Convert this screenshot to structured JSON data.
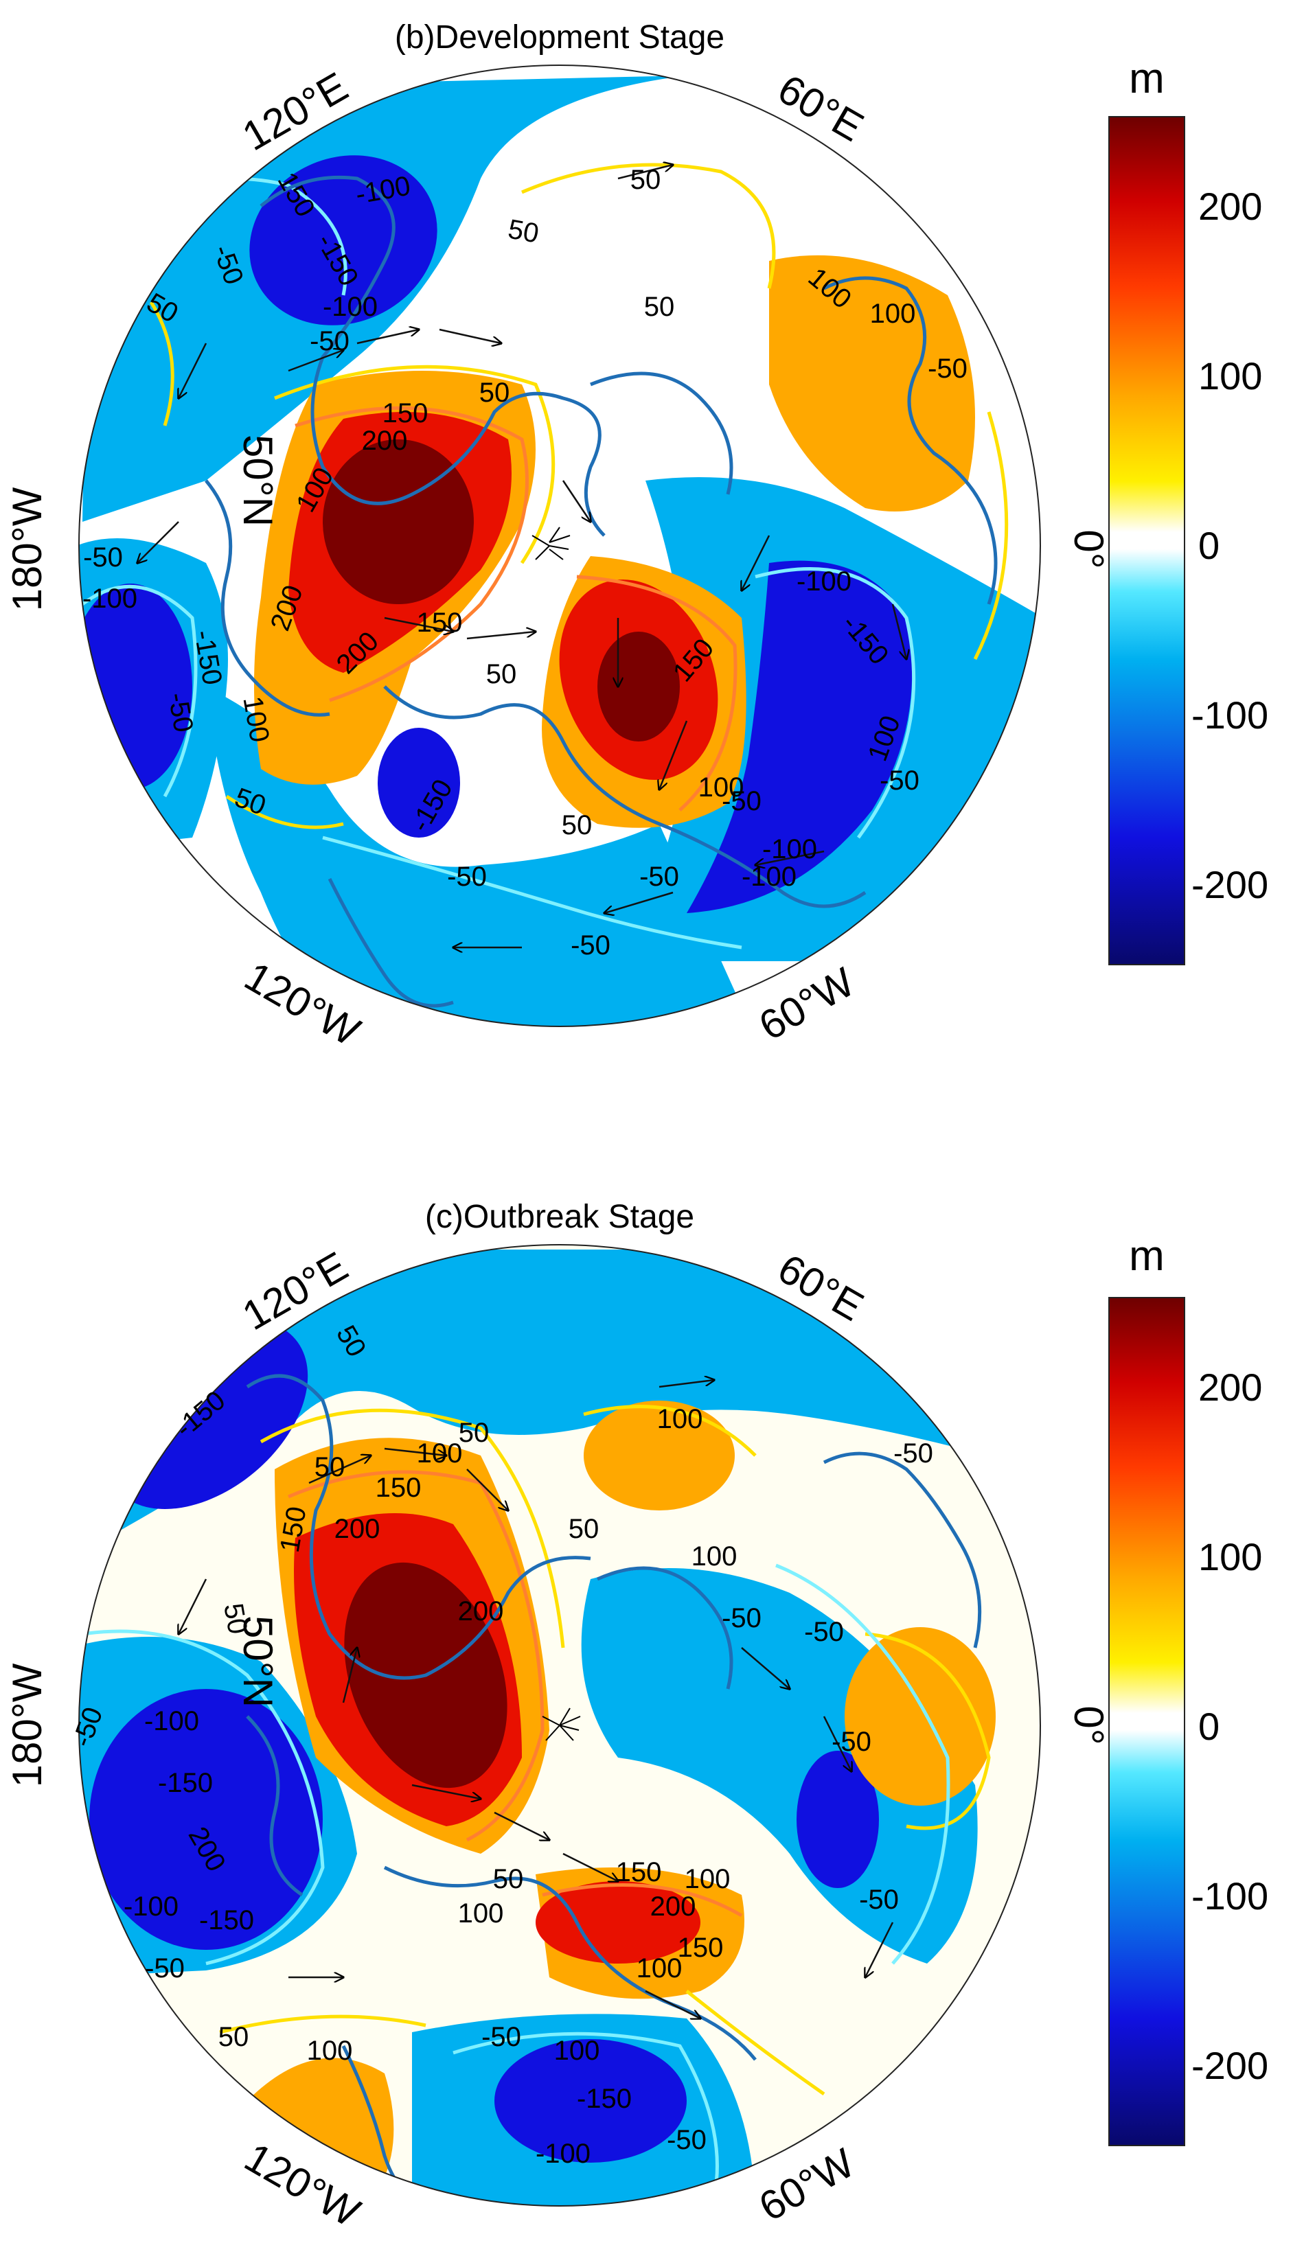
{
  "panels": [
    {
      "id": "b",
      "title": "(b)Development Stage",
      "lon_labels": {
        "e120": "120°E",
        "e60": "60°E",
        "w180": "180°W",
        "zero": "0°",
        "w120": "120°W",
        "w60": "60°W"
      },
      "lat_label": "50°N",
      "contour_labels": [
        "-100",
        "50",
        "150",
        "-150",
        "-100",
        "100",
        "50",
        "-50",
        "50",
        "50",
        "-50",
        "100",
        "50",
        "150",
        "200",
        "-50",
        "100",
        "200",
        "150",
        "-100",
        "-150",
        "-100",
        "-50",
        "150",
        "200",
        "100",
        "50",
        "-50",
        "-150",
        "100",
        "-50",
        "-100",
        "-50",
        "-50",
        "50",
        "-50",
        "-50",
        "-100",
        "-150",
        "100",
        "50"
      ]
    },
    {
      "id": "c",
      "title": "(c)Outbreak Stage",
      "lon_labels": {
        "e120": "120°E",
        "e60": "60°E",
        "w180": "180°W",
        "zero": "0°",
        "w120": "120°W",
        "w60": "60°W"
      },
      "lat_label": "50°N",
      "contour_labels": [
        "50",
        "-150",
        "50",
        "100",
        "150",
        "200",
        "50",
        "100",
        "-50",
        "50",
        "100",
        "-50",
        "-50",
        "200",
        "150",
        "50",
        "-150",
        "-100",
        "200",
        "-100",
        "-150",
        "-50",
        "50",
        "100",
        "-50",
        "150",
        "200",
        "100",
        "150",
        "100",
        "-50",
        "-150",
        "100",
        "-100",
        "-50",
        "50",
        "-50",
        "100",
        "-50"
      ]
    }
  ],
  "colorbar": {
    "unit": "m",
    "ticks": [
      "200",
      "100",
      "0",
      "-100",
      "-200"
    ],
    "range": [
      -250,
      250
    ],
    "colors": [
      "#08086b",
      "#1010e0",
      "#0a6fe6",
      "#00b0f0",
      "#55e8ff",
      "#ffffff",
      "#ffffff",
      "#ffe000",
      "#ffa800",
      "#ff4a00",
      "#d00000",
      "#6e0000"
    ]
  }
}
